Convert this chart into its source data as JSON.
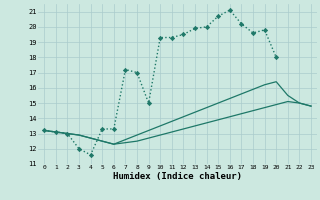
{
  "xlabel": "Humidex (Indice chaleur)",
  "background_color": "#cce8e0",
  "grid_color": "#aacccc",
  "line_color": "#1e7868",
  "xlim": [
    -0.5,
    23.5
  ],
  "ylim": [
    11,
    21.5
  ],
  "xticks": [
    0,
    1,
    2,
    3,
    4,
    5,
    6,
    7,
    8,
    9,
    10,
    11,
    12,
    13,
    14,
    15,
    16,
    17,
    18,
    19,
    20,
    21,
    22,
    23
  ],
  "yticks": [
    11,
    12,
    13,
    14,
    15,
    16,
    17,
    18,
    19,
    20,
    21
  ],
  "line1_x": [
    0,
    1,
    2,
    3,
    4,
    5,
    6,
    7,
    8,
    9,
    10,
    11,
    12,
    13,
    14,
    15,
    16,
    17,
    18,
    19,
    20
  ],
  "line1_y": [
    13.2,
    13.1,
    13.0,
    12.0,
    11.6,
    13.3,
    13.3,
    17.2,
    17.0,
    15.0,
    19.3,
    19.3,
    19.5,
    19.9,
    20.0,
    20.7,
    21.1,
    20.2,
    19.6,
    19.8,
    18.0
  ],
  "line2_x": [
    0,
    1,
    2,
    3,
    4,
    5,
    6,
    7,
    8,
    9,
    10,
    11,
    12,
    13,
    14,
    15,
    16,
    17,
    18,
    19,
    20,
    21,
    22,
    23
  ],
  "line2_y": [
    13.2,
    13.1,
    13.0,
    12.9,
    12.7,
    12.5,
    12.3,
    12.6,
    12.9,
    13.2,
    13.5,
    13.8,
    14.1,
    14.4,
    14.7,
    15.0,
    15.3,
    15.6,
    15.9,
    16.2,
    16.4,
    15.5,
    15.0,
    14.8
  ],
  "line3_x": [
    0,
    1,
    2,
    3,
    4,
    5,
    6,
    7,
    8,
    9,
    10,
    11,
    12,
    13,
    14,
    15,
    16,
    17,
    18,
    19,
    20,
    21,
    22,
    23
  ],
  "line3_y": [
    13.2,
    13.1,
    13.0,
    12.9,
    12.7,
    12.5,
    12.3,
    12.4,
    12.5,
    12.7,
    12.9,
    13.1,
    13.3,
    13.5,
    13.7,
    13.9,
    14.1,
    14.3,
    14.5,
    14.7,
    14.9,
    15.1,
    15.0,
    14.8
  ]
}
